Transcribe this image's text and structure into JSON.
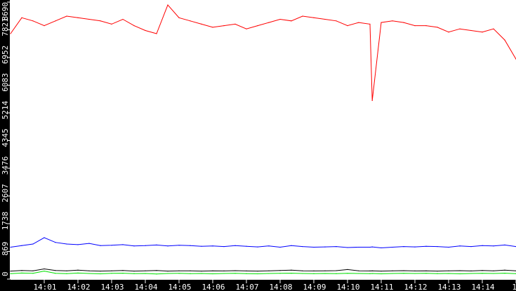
{
  "chart_data": {
    "type": "line",
    "title": "",
    "xlabel": "",
    "ylabel": "",
    "ylim": [
      0,
      8690
    ],
    "xlim": [
      "14:00:00",
      "14:15:00"
    ],
    "grid": false,
    "legend": "none",
    "y_ticks": [
      "0",
      "869",
      "1738",
      "2607",
      "3476",
      "4345",
      "5214",
      "6083",
      "6952",
      "7821",
      "8690"
    ],
    "x_ticks": [
      "14:01",
      "14:02",
      "14:03",
      "14:04",
      "14:05",
      "14:06",
      "14:07",
      "14:08",
      "14:09",
      "14:10",
      "14:11",
      "14:12",
      "14:13",
      "14:14",
      "14"
    ],
    "x": [
      "14:00:00",
      "14:00:20",
      "14:00:40",
      "14:01:00",
      "14:01:20",
      "14:01:40",
      "14:02:00",
      "14:02:20",
      "14:02:40",
      "14:03:00",
      "14:03:20",
      "14:03:40",
      "14:04:00",
      "14:04:20",
      "14:04:40",
      "14:05:00",
      "14:05:20",
      "14:05:40",
      "14:06:00",
      "14:06:20",
      "14:06:40",
      "14:07:00",
      "14:07:20",
      "14:07:40",
      "14:08:00",
      "14:08:20",
      "14:08:40",
      "14:09:00",
      "14:09:20",
      "14:09:40",
      "14:10:00",
      "14:10:20",
      "14:10:40",
      "14:10:44",
      "14:11:00",
      "14:11:20",
      "14:11:40",
      "14:12:00",
      "14:12:20",
      "14:12:40",
      "14:13:00",
      "14:13:20",
      "14:13:40",
      "14:14:00",
      "14:14:20",
      "14:14:40",
      "14:15:00"
    ],
    "series": [
      {
        "color": "#ff0000",
        "values": [
          7700,
          8200,
          8100,
          7950,
          8100,
          8250,
          8200,
          8150,
          8100,
          8000,
          8150,
          7950,
          7800,
          7700,
          8600,
          8200,
          8100,
          8000,
          7900,
          7950,
          8000,
          7850,
          7950,
          8050,
          8150,
          8100,
          8250,
          8200,
          8150,
          8100,
          7950,
          8050,
          8000,
          5600,
          8050,
          8100,
          8050,
          7950,
          7950,
          7900,
          7750,
          7850,
          7800,
          7750,
          7850,
          7500,
          6900
        ]
      },
      {
        "color": "#0000ff",
        "values": [
          1000,
          1050,
          1100,
          1300,
          1150,
          1100,
          1080,
          1120,
          1050,
          1060,
          1080,
          1040,
          1050,
          1070,
          1040,
          1060,
          1050,
          1030,
          1040,
          1020,
          1050,
          1030,
          1010,
          1040,
          1000,
          1050,
          1020,
          1000,
          1010,
          1020,
          990,
          1000,
          1000,
          1010,
          980,
          1000,
          1020,
          1010,
          1030,
          1020,
          1000,
          1040,
          1020,
          1050,
          1040,
          1070,
          1020
        ]
      },
      {
        "color": "#000000",
        "values": [
          250,
          270,
          260,
          320,
          270,
          260,
          280,
          260,
          250,
          260,
          270,
          250,
          260,
          270,
          250,
          260,
          260,
          250,
          260,
          255,
          265,
          255,
          250,
          260,
          270,
          280,
          260,
          255,
          260,
          265,
          300,
          260,
          255,
          260,
          250,
          260,
          265,
          255,
          260,
          250,
          260,
          265,
          255,
          270,
          260,
          280,
          260
        ]
      },
      {
        "color": "#00e000",
        "values": [
          170,
          190,
          180,
          250,
          180,
          170,
          190,
          175,
          165,
          180,
          185,
          170,
          175,
          160,
          175,
          180,
          170,
          175,
          165,
          175,
          180,
          170,
          165,
          175,
          180,
          185,
          175,
          170,
          175,
          170,
          180,
          175,
          170,
          175,
          165,
          175,
          180,
          175,
          180,
          170,
          175,
          165,
          175,
          180,
          175,
          185,
          170
        ]
      }
    ]
  }
}
